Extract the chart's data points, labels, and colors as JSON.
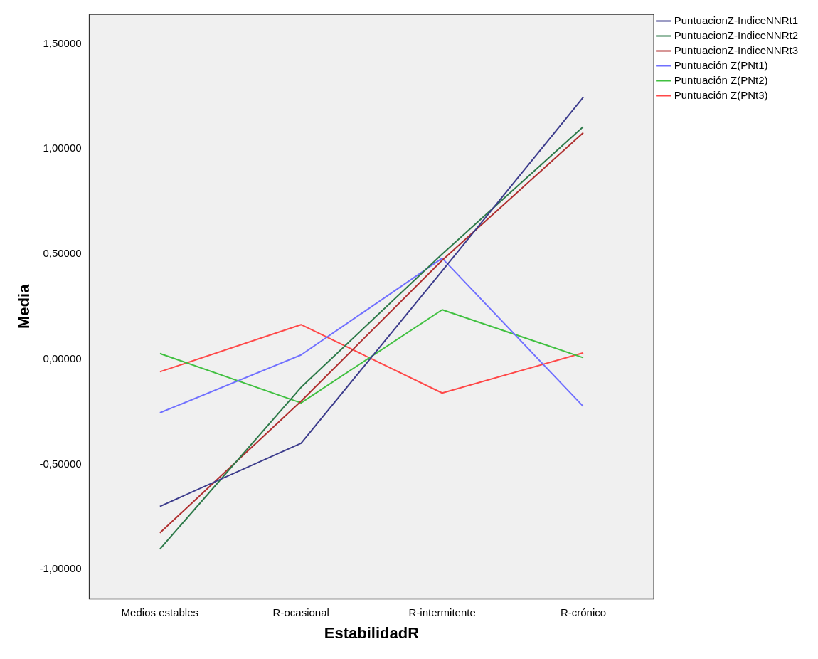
{
  "chart_data": {
    "type": "line",
    "xlabel": "EstabilidadR",
    "ylabel": "Media",
    "categories": [
      "Medios estables",
      "R-ocasional",
      "R-intermitente",
      "R-crónico"
    ],
    "series": [
      {
        "name": "PuntuacionZ-IndiceNNRt1",
        "color": "#3c3c8c",
        "values": [
          -0.7,
          -0.4,
          0.42,
          1.245
        ]
      },
      {
        "name": "PuntuacionZ-IndiceNNRt2",
        "color": "#2e7a4a",
        "values": [
          -0.903,
          -0.134,
          0.5,
          1.105
        ]
      },
      {
        "name": "PuntuacionZ-IndiceNNRt3",
        "color": "#b03030",
        "values": [
          -0.826,
          -0.2,
          0.47,
          1.077
        ]
      },
      {
        "name": "Puntuación Z(PNt1)",
        "color": "#7070ff",
        "values": [
          -0.255,
          0.02,
          0.48,
          -0.225
        ]
      },
      {
        "name": "Puntuación Z(PNt2)",
        "color": "#40c040",
        "values": [
          0.027,
          -0.208,
          0.235,
          0.007
        ]
      },
      {
        "name": "Puntuación Z(PNt3)",
        "color": "#ff4848",
        "values": [
          -0.06,
          0.164,
          -0.161,
          0.03
        ]
      }
    ],
    "ylim": [
      -1.14,
      1.64
    ],
    "yticks": [
      {
        "value": -1,
        "label": "-1,00000"
      },
      {
        "value": -0.5,
        "label": "-0,50000"
      },
      {
        "value": 0,
        "label": "0,00000"
      },
      {
        "value": 0.5,
        "label": "0,50000"
      },
      {
        "value": 1,
        "label": "1,00000"
      },
      {
        "value": 1.5,
        "label": "1,50000"
      }
    ],
    "grid": false,
    "legend": "top right",
    "marker": "none",
    "line_style": "solid"
  }
}
